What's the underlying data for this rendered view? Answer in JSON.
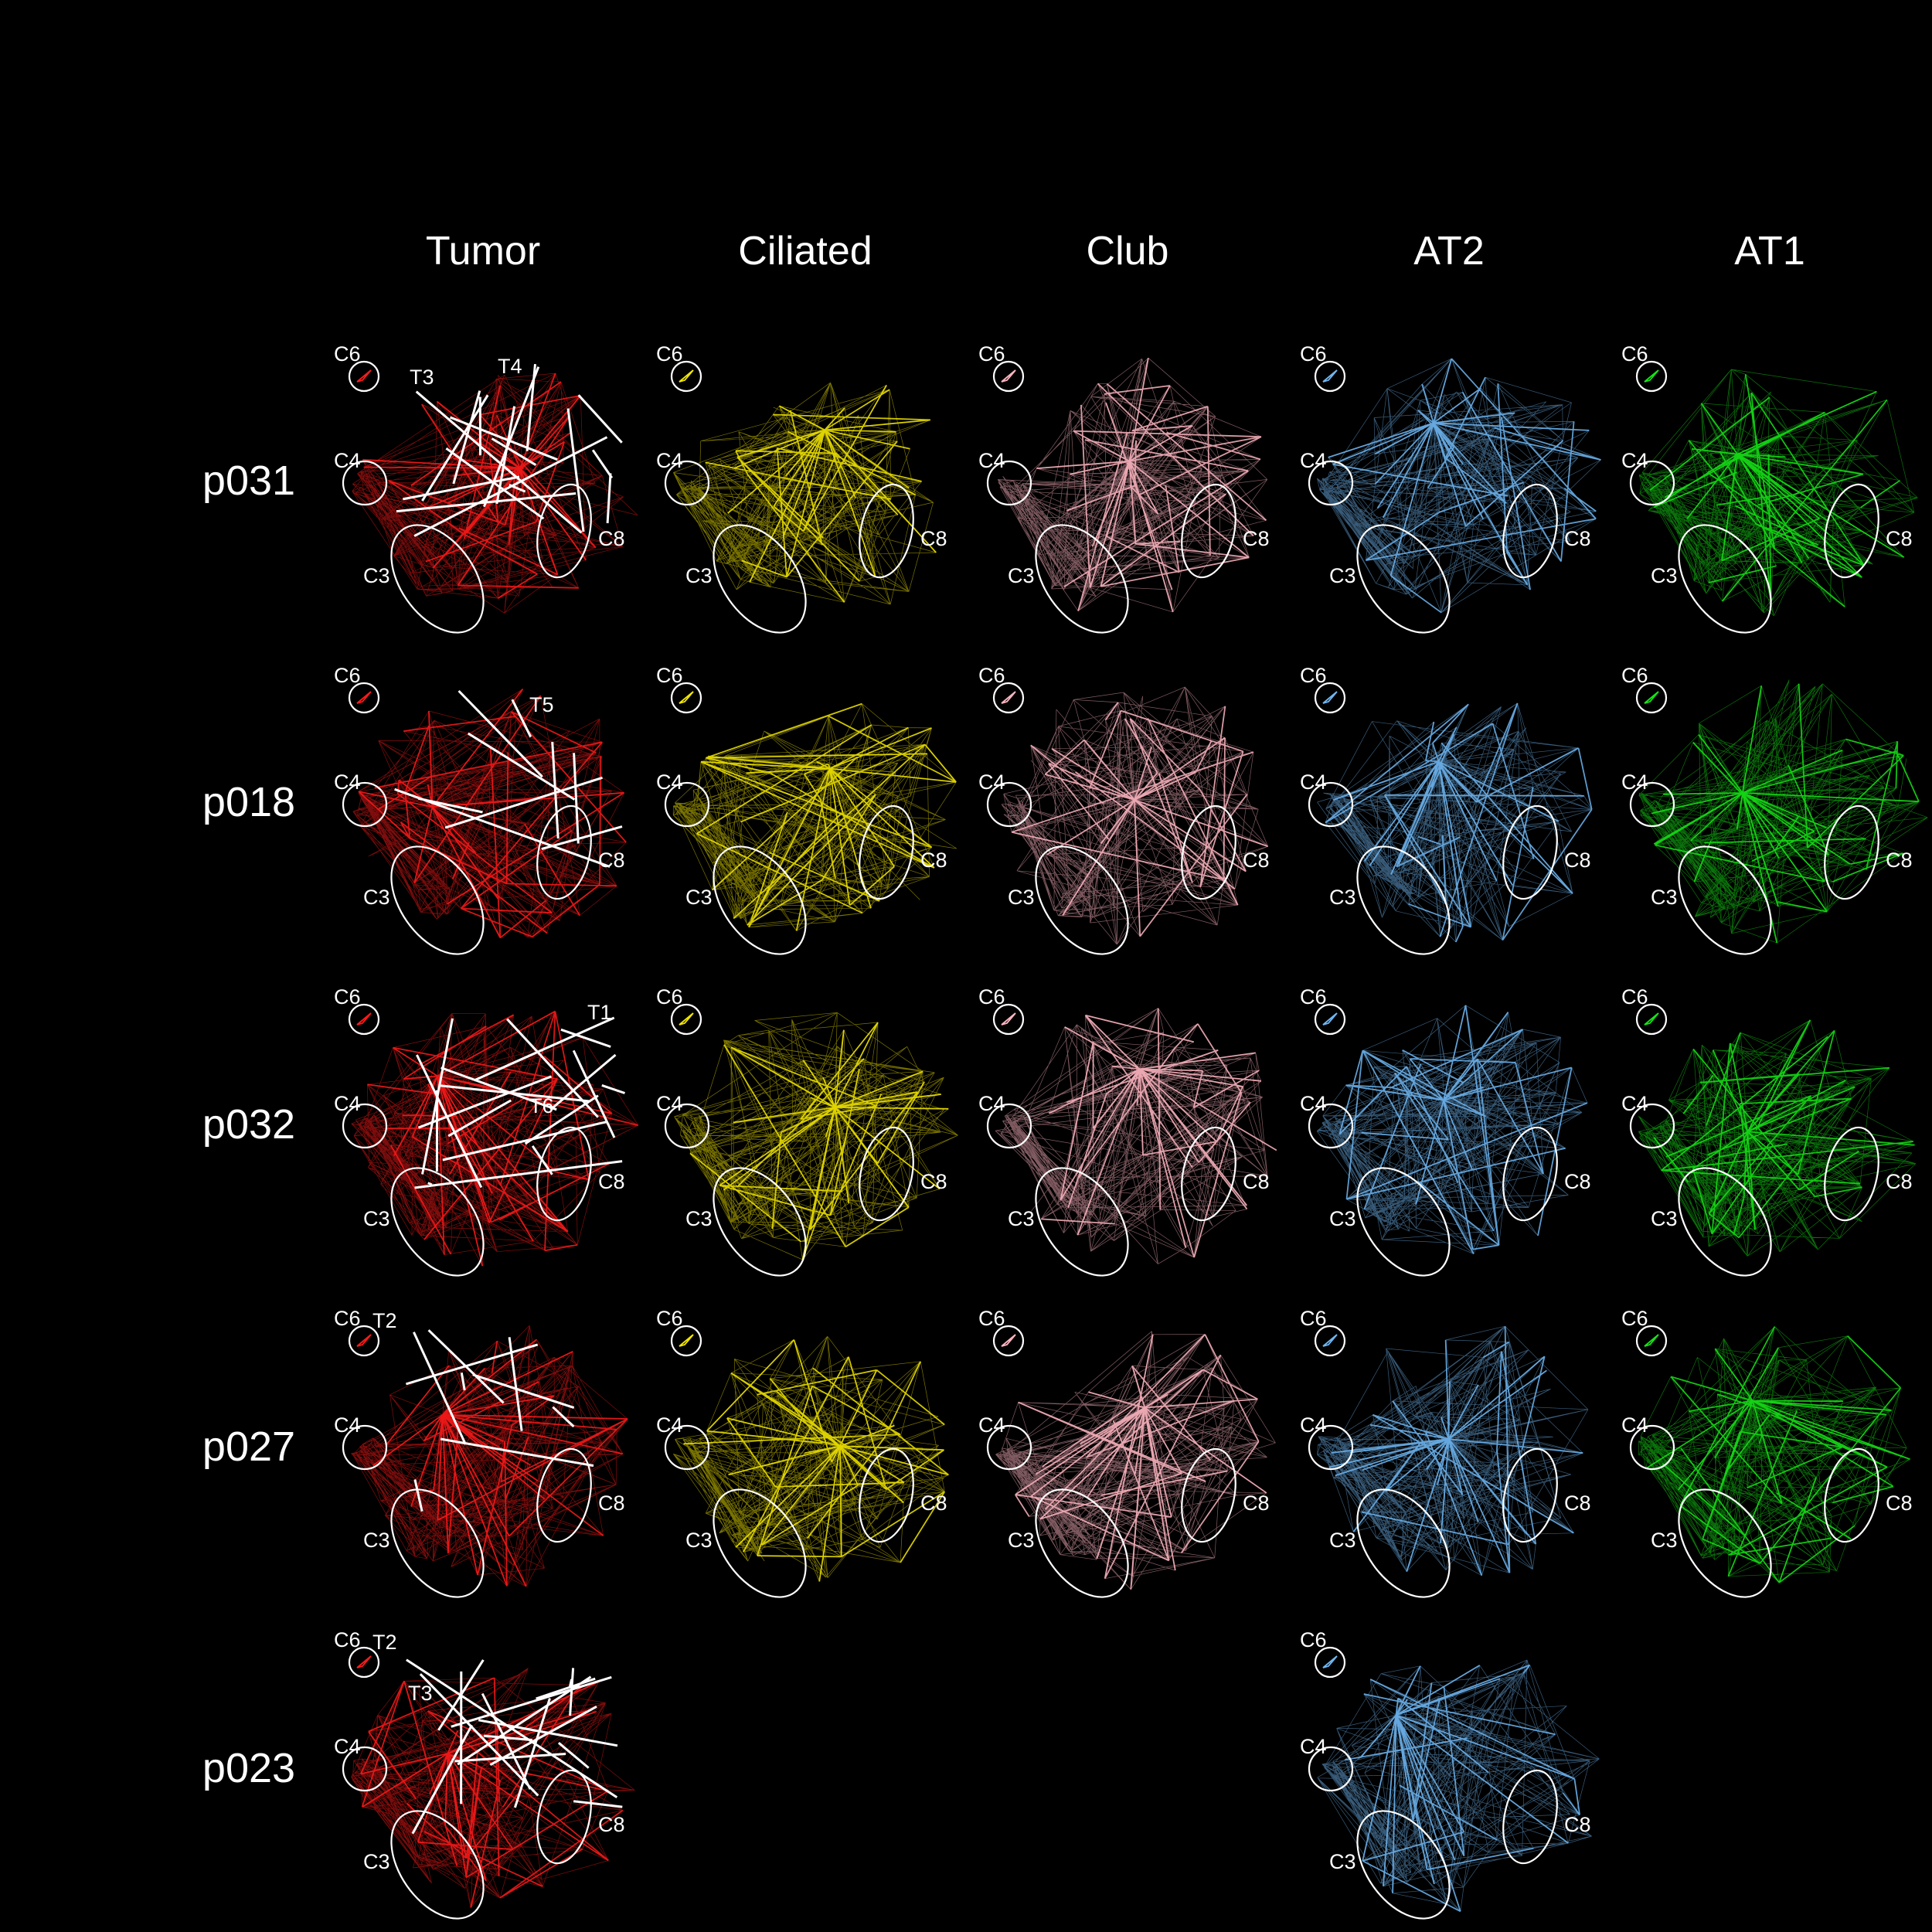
{
  "colors": {
    "background": "#000000",
    "Tumor": "#ff1a1a",
    "Ciliated": "#f2e600",
    "Club": "#ffb6c1",
    "AT2": "#6fb6f2",
    "AT1": "#16e316",
    "highlight": "#ffffff"
  },
  "columns": [
    "Tumor",
    "Ciliated",
    "Club",
    "AT2",
    "AT1"
  ],
  "rows": [
    "p031",
    "p018",
    "p032",
    "p027",
    "p023"
  ],
  "cluster_labels": [
    "C6",
    "C4",
    "C3",
    "C8"
  ],
  "panels": [
    {
      "row": "p031",
      "column": "Tumor",
      "highlights": [
        "T3",
        "T4"
      ]
    },
    {
      "row": "p031",
      "column": "Ciliated",
      "highlights": []
    },
    {
      "row": "p031",
      "column": "Club",
      "highlights": []
    },
    {
      "row": "p031",
      "column": "AT2",
      "highlights": []
    },
    {
      "row": "p031",
      "column": "AT1",
      "highlights": []
    },
    {
      "row": "p018",
      "column": "Tumor",
      "highlights": [
        "T5"
      ]
    },
    {
      "row": "p018",
      "column": "Ciliated",
      "highlights": []
    },
    {
      "row": "p018",
      "column": "Club",
      "highlights": []
    },
    {
      "row": "p018",
      "column": "AT2",
      "highlights": []
    },
    {
      "row": "p018",
      "column": "AT1",
      "highlights": []
    },
    {
      "row": "p032",
      "column": "Tumor",
      "highlights": [
        "T1",
        "T6"
      ]
    },
    {
      "row": "p032",
      "column": "Ciliated",
      "highlights": []
    },
    {
      "row": "p032",
      "column": "Club",
      "highlights": []
    },
    {
      "row": "p032",
      "column": "AT2",
      "highlights": []
    },
    {
      "row": "p032",
      "column": "AT1",
      "highlights": []
    },
    {
      "row": "p027",
      "column": "Tumor",
      "highlights": [
        "T2"
      ]
    },
    {
      "row": "p027",
      "column": "Ciliated",
      "highlights": []
    },
    {
      "row": "p027",
      "column": "Club",
      "highlights": []
    },
    {
      "row": "p027",
      "column": "AT2",
      "highlights": []
    },
    {
      "row": "p027",
      "column": "AT1",
      "highlights": []
    },
    {
      "row": "p023",
      "column": "Tumor",
      "highlights": [
        "T2",
        "T3"
      ]
    },
    {
      "row": "p023",
      "column": "AT2",
      "highlights": []
    }
  ]
}
